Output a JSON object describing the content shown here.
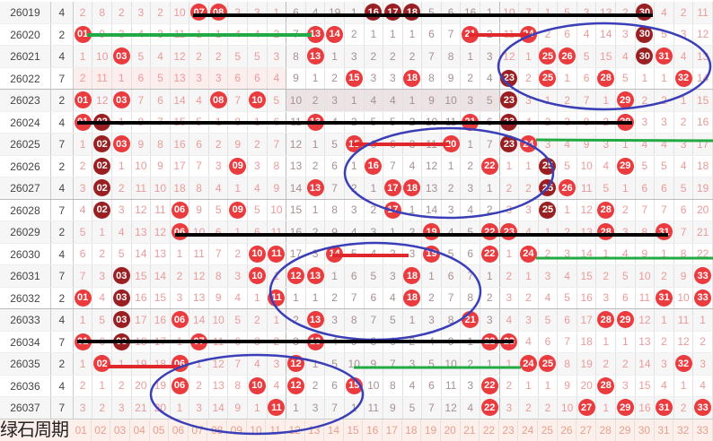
{
  "colors": {
    "ball": "#ea3b3e",
    "repeat_ball": "#9a1f22",
    "miss_text": "#eb9a9a",
    "mid_zone_text": "#a89090",
    "ellipse": "#3a3fb8",
    "line_black": "#000000",
    "line_green": "#22aa44",
    "line_red": "#e0282c"
  },
  "watermark": "绿石周期",
  "footer": {
    "columns": [
      "01",
      "02",
      "03",
      "04",
      "05",
      "06",
      "07",
      "08",
      "09",
      "10",
      "11",
      "12",
      "13",
      "14",
      "15",
      "16",
      "17",
      "18",
      "19",
      "20",
      "21",
      "22",
      "23",
      "24",
      "25",
      "26",
      "27",
      "28",
      "29",
      "30",
      "31",
      "32",
      "33"
    ]
  },
  "rows": [
    {
      "period": "26019",
      "val": "4",
      "cells": [
        2,
        8,
        2,
        3,
        2,
        10,
        "07",
        "08",
        3,
        3,
        1,
        6,
        4,
        19,
        1,
        "16",
        "17",
        "18",
        5,
        6,
        16,
        1,
        10,
        7,
        1,
        5,
        3,
        13,
        2,
        "30",
        4,
        2,
        11
      ],
      "repeat": [
        "16",
        "17",
        "18",
        "30"
      ]
    },
    {
      "period": "26020",
      "val": "2",
      "cells": [
        "01",
        9,
        3,
        4,
        3,
        11,
        1,
        1,
        4,
        4,
        2,
        7,
        "13",
        "14",
        2,
        1,
        1,
        1,
        6,
        7,
        "21",
        2,
        11,
        "24",
        2,
        6,
        4,
        14,
        3,
        "30",
        5,
        3,
        12
      ],
      "repeat": [
        "30"
      ]
    },
    {
      "period": "26021",
      "val": "4",
      "cells": [
        1,
        10,
        "03",
        5,
        4,
        12,
        2,
        2,
        5,
        5,
        3,
        8,
        "13",
        1,
        3,
        2,
        2,
        2,
        7,
        8,
        1,
        3,
        12,
        1,
        "25",
        "26",
        5,
        15,
        4,
        "30",
        "31",
        4,
        13
      ],
      "repeat": [
        "30"
      ]
    },
    {
      "period": "26022",
      "val": "7",
      "cells": [
        2,
        11,
        1,
        6,
        5,
        13,
        3,
        3,
        6,
        6,
        4,
        9,
        1,
        2,
        "15",
        3,
        3,
        "18",
        8,
        9,
        2,
        4,
        "23",
        2,
        "25",
        1,
        6,
        "28",
        5,
        1,
        1,
        "32",
        14
      ],
      "repeat": [
        "23"
      ]
    },
    {
      "period": "26023",
      "val": "2",
      "cells": [
        "01",
        12,
        "03",
        7,
        6,
        14,
        4,
        "08",
        7,
        "10",
        5,
        10,
        2,
        3,
        1,
        4,
        4,
        1,
        9,
        10,
        3,
        5,
        "23",
        3,
        1,
        2,
        7,
        1,
        "29",
        2,
        2,
        1,
        15
      ],
      "repeat": [
        "23"
      ]
    },
    {
      "period": "26024",
      "val": "4",
      "cells": [
        "01",
        "02",
        1,
        8,
        7,
        15,
        5,
        1,
        8,
        1,
        6,
        11,
        "13",
        4,
        2,
        5,
        5,
        2,
        10,
        11,
        "21",
        6,
        "23",
        4,
        2,
        3,
        8,
        2,
        "29",
        3,
        3,
        2,
        16
      ],
      "repeat": [
        "02",
        "23"
      ]
    },
    {
      "period": "26025",
      "val": "7",
      "cells": [
        1,
        "02",
        "03",
        9,
        8,
        16,
        6,
        2,
        9,
        2,
        7,
        12,
        1,
        5,
        "15",
        6,
        6,
        3,
        11,
        "20",
        1,
        7,
        "23",
        "24",
        3,
        4,
        9,
        3,
        1,
        4,
        4,
        3,
        17
      ],
      "repeat": [
        "02",
        "23"
      ]
    },
    {
      "period": "26026",
      "val": "2",
      "cells": [
        2,
        "02",
        1,
        10,
        9,
        17,
        7,
        3,
        "09",
        3,
        8,
        13,
        2,
        6,
        1,
        "16",
        7,
        4,
        12,
        1,
        2,
        "22",
        1,
        1,
        "25",
        5,
        10,
        4,
        "29",
        5,
        5,
        4,
        18
      ],
      "repeat": [
        "02",
        "25"
      ]
    },
    {
      "period": "26027",
      "val": "4",
      "cells": [
        3,
        "02",
        2,
        11,
        10,
        18,
        8,
        4,
        1,
        4,
        9,
        14,
        "13",
        7,
        2,
        1,
        "17",
        "18",
        13,
        2,
        3,
        1,
        2,
        2,
        "25",
        "26",
        11,
        5,
        1,
        6,
        6,
        5,
        19
      ],
      "repeat": [
        "02",
        "25"
      ]
    },
    {
      "period": "26028",
      "val": "7",
      "cells": [
        4,
        "02",
        3,
        12,
        11,
        "06",
        9,
        5,
        "09",
        5,
        10,
        15,
        1,
        8,
        3,
        2,
        "17",
        1,
        14,
        3,
        4,
        2,
        3,
        3,
        "25",
        1,
        12,
        "28",
        2,
        7,
        7,
        6,
        20
      ],
      "repeat": [
        "02",
        "25"
      ]
    },
    {
      "period": "26029",
      "val": "2",
      "cells": [
        5,
        1,
        4,
        13,
        12,
        "06",
        10,
        6,
        1,
        6,
        11,
        16,
        2,
        9,
        4,
        3,
        1,
        2,
        "19",
        4,
        5,
        "22",
        "23",
        4,
        1,
        2,
        13,
        "28",
        3,
        8,
        "31",
        7,
        21
      ],
      "repeat": []
    },
    {
      "period": "26030",
      "val": "4",
      "cells": [
        6,
        2,
        5,
        14,
        13,
        1,
        11,
        7,
        2,
        "10",
        "11",
        17,
        3,
        "14",
        5,
        4,
        2,
        3,
        "19",
        5,
        6,
        "22",
        1,
        "24",
        2,
        3,
        14,
        1,
        4,
        9,
        1,
        8,
        22
      ],
      "repeat": []
    },
    {
      "period": "26031",
      "val": "7",
      "cells": [
        7,
        3,
        "03",
        15,
        14,
        2,
        12,
        8,
        3,
        "10",
        1,
        "12",
        "13",
        1,
        6,
        5,
        3,
        "18",
        1,
        6,
        7,
        1,
        2,
        1,
        3,
        4,
        15,
        2,
        5,
        10,
        2,
        9,
        "33"
      ],
      "repeat": [
        "03"
      ]
    },
    {
      "period": "26032",
      "val": "2",
      "cells": [
        "01",
        4,
        "03",
        16,
        15,
        3,
        13,
        9,
        4,
        1,
        "11",
        1,
        1,
        2,
        7,
        6,
        4,
        "18",
        2,
        7,
        8,
        2,
        3,
        2,
        4,
        5,
        16,
        3,
        6,
        11,
        "31",
        10,
        "33"
      ],
      "repeat": [
        "03"
      ]
    },
    {
      "period": "26033",
      "val": "4",
      "cells": [
        1,
        5,
        "03",
        17,
        16,
        "06",
        14,
        10,
        5,
        2,
        1,
        2,
        "13",
        3,
        8,
        7,
        5,
        1,
        3,
        8,
        "21",
        3,
        4,
        3,
        5,
        6,
        17,
        "28",
        "29",
        12,
        1,
        11,
        1
      ],
      "repeat": [
        "03"
      ]
    },
    {
      "period": "26034",
      "val": "7",
      "cells": [
        "01",
        6,
        "03",
        18,
        17,
        1,
        "07",
        11,
        6,
        3,
        2,
        3,
        "13",
        4,
        9,
        8,
        6,
        2,
        4,
        9,
        1,
        "22",
        "23",
        4,
        6,
        7,
        18,
        1,
        1,
        13,
        2,
        12,
        2
      ],
      "repeat": [
        "03"
      ]
    },
    {
      "period": "26035",
      "val": "2",
      "cells": [
        1,
        "02",
        1,
        19,
        18,
        "06",
        1,
        12,
        7,
        4,
        3,
        "12",
        1,
        5,
        10,
        9,
        7,
        3,
        5,
        10,
        2,
        1,
        1,
        "24",
        "25",
        8,
        19,
        2,
        2,
        14,
        3,
        "32",
        3
      ],
      "repeat": []
    },
    {
      "period": "26036",
      "val": "4",
      "cells": [
        2,
        1,
        2,
        20,
        19,
        "06",
        2,
        13,
        8,
        "10",
        4,
        "12",
        2,
        6,
        "15",
        10,
        8,
        4,
        6,
        11,
        3,
        "22",
        2,
        1,
        1,
        9,
        20,
        "28",
        3,
        15,
        4,
        1,
        4
      ],
      "repeat": []
    },
    {
      "period": "26037",
      "val": "7",
      "cells": [
        3,
        2,
        3,
        21,
        20,
        1,
        3,
        14,
        9,
        1,
        "11",
        1,
        3,
        7,
        1,
        11,
        9,
        5,
        7,
        12,
        4,
        "22",
        3,
        2,
        2,
        10,
        "27",
        1,
        "29",
        16,
        "31",
        2,
        "33"
      ],
      "repeat": []
    }
  ]
}
